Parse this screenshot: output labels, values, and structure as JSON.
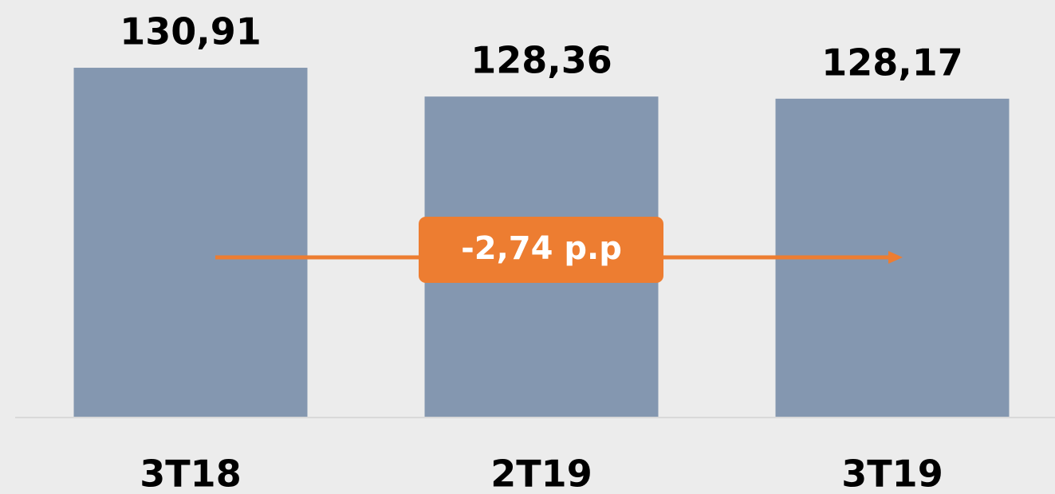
{
  "chart_data": {
    "type": "bar",
    "categories": [
      "3T18",
      "2T19",
      "3T19"
    ],
    "values": [
      130.91,
      128.36,
      128.17
    ],
    "value_labels": [
      "130,91",
      "128,36",
      "128,17"
    ],
    "color": "#8497b0",
    "ylim": [
      100,
      132
    ],
    "annotation": "-2,74 p.p",
    "annotation_color": "#ed7d31"
  }
}
